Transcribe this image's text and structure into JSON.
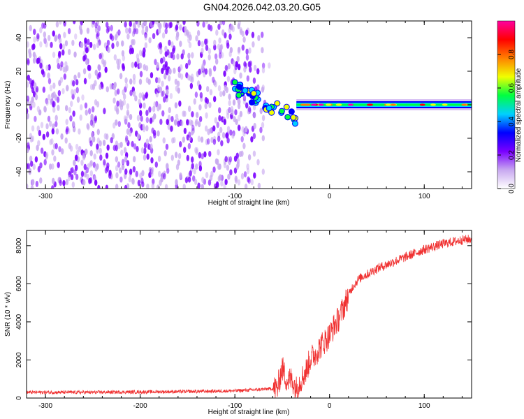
{
  "title": "GN04.2026.042.03.20.G05",
  "chart_data": [
    {
      "type": "heatmap",
      "xlabel": "Height of straight line (km)",
      "ylabel": "Frequency (Hz)",
      "xlim": [
        -320,
        150
      ],
      "ylim": [
        -50,
        50
      ],
      "xticks": [
        -300,
        -200,
        -100,
        0,
        100
      ],
      "yticks": [
        -40,
        -20,
        0,
        20,
        40
      ],
      "colorbar": {
        "label": "Normalized spectral amplitude",
        "range": [
          0.0,
          1.0
        ],
        "ticks": [
          0.0,
          0.2,
          0.4,
          0.6,
          0.8
        ],
        "colors": [
          "#ffffff",
          "#c8a8f0",
          "#7a00ff",
          "#0000ff",
          "#00d0ff",
          "#00ff40",
          "#f0ff00",
          "#ff8000",
          "#ff0000",
          "#ff00a0"
        ]
      },
      "regions": [
        {
          "name": "noise",
          "x": [
            -320,
            -60
          ],
          "freq": [
            -50,
            50
          ],
          "amplitude": [
            0.0,
            0.25
          ]
        },
        {
          "name": "transition",
          "x": [
            -100,
            -35
          ],
          "freq_center": [
            10,
            -8
          ],
          "amplitude": [
            0.3,
            0.7
          ]
        },
        {
          "name": "carrier",
          "x": [
            -35,
            150
          ],
          "freq_center": 0,
          "amplitude": [
            0.6,
            1.0
          ]
        }
      ]
    },
    {
      "type": "line",
      "xlabel": "Height of straight line (km)",
      "ylabel": "SNR (10 * v/v)",
      "xlim": [
        -320,
        150
      ],
      "ylim": [
        0,
        8800
      ],
      "xticks": [
        -300,
        -200,
        -100,
        0,
        100
      ],
      "yticks": [
        0,
        2000,
        4000,
        6000,
        8000
      ],
      "color": "#f03030",
      "series": [
        {
          "x": [
            -320,
            -250,
            -200,
            -150,
            -100,
            -80,
            -65,
            -55,
            -50,
            -45,
            -40,
            -35,
            -30,
            -25,
            -20,
            -15,
            -10,
            -5,
            0,
            5,
            10,
            15,
            20,
            25,
            30,
            35,
            40,
            50,
            60,
            70,
            80,
            90,
            100,
            110,
            120,
            130,
            140,
            150
          ],
          "values": [
            300,
            300,
            320,
            340,
            380,
            430,
            480,
            520,
            1600,
            900,
            1000,
            500,
            1000,
            1400,
            2100,
            2300,
            2700,
            3000,
            3300,
            3800,
            4200,
            4800,
            5400,
            5900,
            6200,
            6400,
            6500,
            6800,
            7000,
            7200,
            7400,
            7600,
            7800,
            7950,
            8100,
            8200,
            8300,
            8350
          ]
        }
      ]
    }
  ]
}
